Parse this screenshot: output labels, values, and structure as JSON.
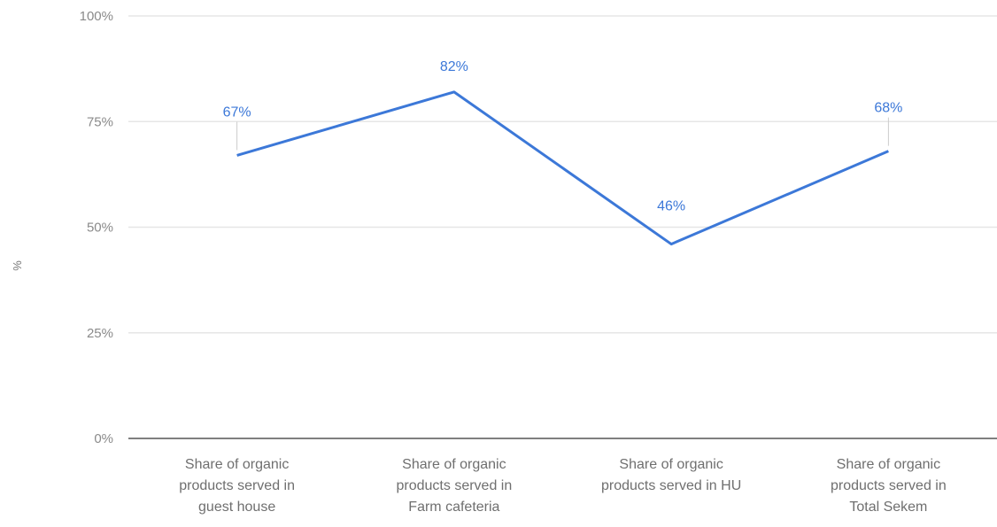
{
  "chart_data": {
    "type": "line",
    "categories": [
      [
        "Share of organic",
        "products served in",
        "guest house"
      ],
      [
        "Share of organic",
        "products served in",
        "Farm cafeteria"
      ],
      [
        "Share of organic",
        "products served in HU"
      ],
      [
        "Share of organic",
        "products served in",
        "Total Sekem"
      ]
    ],
    "values": [
      67,
      82,
      46,
      68
    ],
    "data_labels": [
      "67%",
      "82%",
      "46%",
      "68%"
    ],
    "ylabel": "%",
    "ylim": [
      0,
      100
    ],
    "yticks": [
      0,
      25,
      50,
      75,
      100
    ],
    "ytick_labels": [
      "0%",
      "25%",
      "50%",
      "75%",
      "100%"
    ],
    "grid": true,
    "colors": {
      "line": "#3c78d8",
      "grid": "#e6e6e6",
      "axis": "#555555",
      "leader": "#cccccc"
    }
  }
}
